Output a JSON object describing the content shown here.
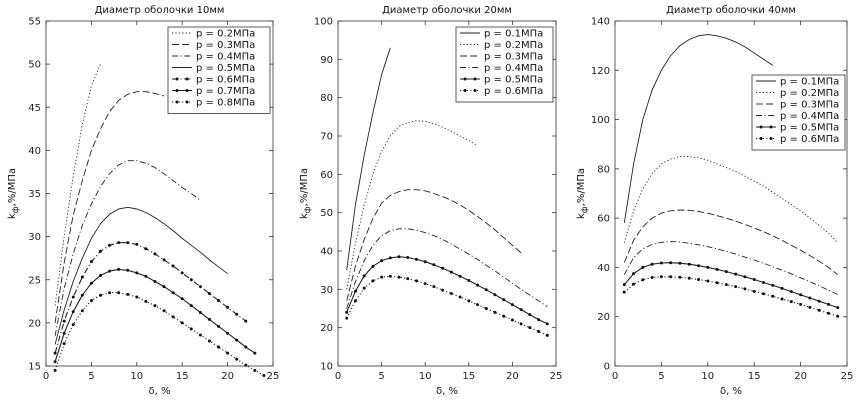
{
  "chart_data": [
    {
      "type": "line",
      "title": "Диаметр оболочки 10мм",
      "xlabel": "δ, %",
      "ylabel_main": "k",
      "ylabel_sub": "ф",
      "ylabel_rest": ",%/МПа",
      "xlim": [
        0,
        25
      ],
      "ylim": [
        15,
        55
      ],
      "xticks": [
        0,
        5,
        10,
        15,
        20,
        25
      ],
      "yticks": [
        15,
        20,
        25,
        30,
        35,
        40,
        45,
        50,
        55
      ],
      "legend_position": "top-right",
      "series": [
        {
          "name": "p = 0.2МПа",
          "style": "dotted",
          "marker": false,
          "x": [
            1,
            2,
            3,
            4,
            5,
            6
          ],
          "y": [
            22,
            30,
            37,
            43,
            47.5,
            50
          ]
        },
        {
          "name": "p = 0.3МПа",
          "style": "dashed",
          "marker": false,
          "x": [
            1,
            2,
            3,
            4,
            5,
            6,
            7,
            8,
            9,
            10,
            11,
            12,
            13
          ],
          "y": [
            20,
            27,
            32.5,
            36.5,
            40,
            42.5,
            44.5,
            45.8,
            46.5,
            46.8,
            46.8,
            46.6,
            46.3
          ]
        },
        {
          "name": "p = 0.4МПа",
          "style": "dashdot",
          "marker": false,
          "x": [
            1,
            2,
            3,
            4,
            5,
            6,
            7,
            8,
            9,
            10,
            11,
            12,
            13,
            14,
            15,
            16,
            17
          ],
          "y": [
            18.5,
            24,
            28,
            31.3,
            33.8,
            35.8,
            37.3,
            38.3,
            38.8,
            38.8,
            38.5,
            38,
            37.3,
            36.5,
            35.7,
            35,
            34.2
          ]
        },
        {
          "name": "p = 0.5МПа",
          "style": "solid",
          "marker": false,
          "x": [
            1,
            2,
            3,
            4,
            5,
            6,
            7,
            8,
            9,
            10,
            11,
            12,
            13,
            14,
            15,
            16,
            17,
            18,
            19,
            20
          ],
          "y": [
            17.5,
            21.5,
            24.8,
            27.5,
            29.8,
            31.5,
            32.6,
            33.2,
            33.4,
            33.2,
            32.8,
            32.2,
            31.5,
            30.7,
            29.8,
            29,
            28.2,
            27.3,
            26.5,
            25.7
          ]
        },
        {
          "name": "p = 0.6МПа",
          "style": "dashdot",
          "marker": true,
          "x": [
            1,
            2,
            3,
            4,
            5,
            6,
            7,
            8,
            9,
            10,
            11,
            12,
            13,
            14,
            15,
            16,
            17,
            18,
            19,
            20,
            21,
            22
          ],
          "y": [
            16.5,
            20.2,
            23,
            25.3,
            27.1,
            28.3,
            29,
            29.3,
            29.3,
            29.1,
            28.6,
            28,
            27.3,
            26.6,
            25.8,
            25,
            24.2,
            23.4,
            22.6,
            21.8,
            21,
            20.2
          ]
        },
        {
          "name": "p = 0.7МПа",
          "style": "solid",
          "marker": true,
          "x": [
            1,
            2,
            3,
            4,
            5,
            6,
            7,
            8,
            9,
            10,
            11,
            12,
            13,
            14,
            15,
            16,
            17,
            18,
            19,
            20,
            21,
            22,
            23
          ],
          "y": [
            15.5,
            18.8,
            21.3,
            23.2,
            24.6,
            25.5,
            26,
            26.2,
            26.1,
            25.8,
            25.4,
            24.8,
            24.2,
            23.5,
            22.8,
            22,
            21.2,
            20.4,
            19.6,
            18.8,
            18,
            17.2,
            16.5
          ]
        },
        {
          "name": "p = 0.8МПа",
          "style": "dotted",
          "marker": true,
          "x": [
            1,
            2,
            3,
            4,
            5,
            6,
            7,
            8,
            9,
            10,
            11,
            12,
            13,
            14,
            15,
            16,
            17,
            18,
            19,
            20,
            21,
            22,
            23,
            24
          ],
          "y": [
            14.5,
            17.6,
            19.8,
            21.4,
            22.6,
            23.2,
            23.5,
            23.5,
            23.3,
            23,
            22.5,
            22,
            21.4,
            20.7,
            20,
            19.3,
            18.6,
            17.9,
            17.2,
            16.5,
            15.8,
            15.1,
            14.5,
            13.9
          ]
        }
      ]
    },
    {
      "type": "line",
      "title": "Диаметр оболочки 20мм",
      "xlabel": "δ, %",
      "ylabel_main": "k",
      "ylabel_sub": "ф",
      "ylabel_rest": ",%/МПа",
      "xlim": [
        0,
        25
      ],
      "ylim": [
        10,
        100
      ],
      "xticks": [
        0,
        5,
        10,
        15,
        20,
        25
      ],
      "yticks": [
        10,
        20,
        30,
        40,
        50,
        60,
        70,
        80,
        90,
        100
      ],
      "legend_position": "top-right",
      "series": [
        {
          "name": "p = 0.1МПа",
          "style": "solid",
          "marker": false,
          "x": [
            1,
            2,
            3,
            4,
            5,
            6
          ],
          "y": [
            35,
            52,
            65,
            76,
            86,
            93
          ]
        },
        {
          "name": "p = 0.2МПа",
          "style": "dotted",
          "marker": false,
          "x": [
            1,
            2,
            3,
            4,
            5,
            6,
            7,
            8,
            9,
            10,
            11,
            12,
            13,
            14,
            15,
            16
          ],
          "y": [
            30,
            42,
            52,
            60,
            66,
            70,
            72.5,
            73.5,
            74,
            73.8,
            73.2,
            72.3,
            71.2,
            70,
            68.8,
            67.5
          ]
        },
        {
          "name": "p = 0.3МПа",
          "style": "dashed",
          "marker": false,
          "x": [
            1,
            2,
            3,
            4,
            5,
            6,
            7,
            8,
            9,
            10,
            11,
            12,
            13,
            14,
            15,
            16,
            17,
            18,
            19,
            20,
            21
          ],
          "y": [
            27,
            36,
            43,
            48.5,
            52.5,
            54.5,
            55.5,
            56,
            56,
            55.7,
            55,
            54.2,
            53.2,
            52,
            50.6,
            49,
            47.3,
            45.5,
            43.5,
            41.5,
            39.5
          ]
        },
        {
          "name": "p = 0.4МПа",
          "style": "dashdot",
          "marker": false,
          "x": [
            1,
            2,
            3,
            4,
            5,
            6,
            7,
            8,
            9,
            10,
            11,
            12,
            13,
            14,
            15,
            16,
            17,
            18,
            19,
            20,
            21,
            22,
            23,
            24
          ],
          "y": [
            25,
            32,
            37.5,
            41.5,
            44,
            45.3,
            45.8,
            45.8,
            45.4,
            44.8,
            44,
            43,
            41.8,
            40.5,
            39.2,
            37.8,
            36.3,
            34.8,
            33.2,
            31.6,
            30,
            28.5,
            27,
            25.5
          ]
        },
        {
          "name": "p = 0.5МПа",
          "style": "solid",
          "marker": true,
          "x": [
            1,
            2,
            3,
            4,
            5,
            6,
            7,
            8,
            9,
            10,
            11,
            12,
            13,
            14,
            15,
            16,
            17,
            18,
            19,
            20,
            21,
            22,
            23,
            24
          ],
          "y": [
            24,
            29.5,
            33.5,
            36,
            37.5,
            38.2,
            38.5,
            38.3,
            37.8,
            37.2,
            36.4,
            35.5,
            34.5,
            33.4,
            32.3,
            31.1,
            29.9,
            28.6,
            27.3,
            26,
            24.7,
            23.4,
            22.1,
            21
          ]
        },
        {
          "name": "p = 0.6МПа",
          "style": "dotted",
          "marker": true,
          "x": [
            1,
            2,
            3,
            4,
            5,
            6,
            7,
            8,
            9,
            10,
            11,
            12,
            13,
            14,
            15,
            16,
            17,
            18,
            19,
            20,
            21,
            22,
            23,
            24
          ],
          "y": [
            22.5,
            27,
            30.3,
            32.2,
            33.2,
            33.4,
            33.2,
            32.8,
            32.2,
            31.5,
            30.7,
            29.8,
            28.9,
            28,
            27,
            26,
            25,
            24,
            23,
            22,
            21,
            20,
            19,
            18
          ]
        }
      ]
    },
    {
      "type": "line",
      "title": "Диаметр оболочки 40мм",
      "xlabel": "δ, %",
      "ylabel_main": "k",
      "ylabel_sub": "ф",
      "ylabel_rest": ",%/МПа",
      "xlim": [
        0,
        25
      ],
      "ylim": [
        0,
        140
      ],
      "xticks": [
        0,
        5,
        10,
        15,
        20,
        25
      ],
      "yticks": [
        0,
        20,
        40,
        60,
        80,
        100,
        120,
        140
      ],
      "legend_position": "top-right",
      "series": [
        {
          "name": "p = 0.1МПа",
          "style": "solid",
          "marker": false,
          "x": [
            1,
            2,
            3,
            4,
            5,
            6,
            7,
            8,
            9,
            10,
            11,
            12,
            13,
            14,
            15,
            16,
            17
          ],
          "y": [
            58,
            82,
            100,
            112,
            120,
            126,
            130,
            132.5,
            134,
            134.5,
            134,
            133,
            131.5,
            129.5,
            127,
            124.5,
            122
          ]
        },
        {
          "name": "p = 0.2МПа",
          "style": "dotted",
          "marker": false,
          "x": [
            1,
            2,
            3,
            4,
            5,
            6,
            7,
            8,
            9,
            10,
            11,
            12,
            13,
            14,
            15,
            16,
            17,
            18,
            19,
            20,
            21,
            22,
            23,
            24
          ],
          "y": [
            50,
            63,
            72,
            78,
            82,
            84,
            85,
            85,
            84.5,
            83.5,
            82,
            80.5,
            79,
            77,
            75,
            73,
            70.5,
            68,
            65.5,
            63,
            60,
            57,
            54,
            50
          ]
        },
        {
          "name": "p = 0.3МПа",
          "style": "dashed",
          "marker": false,
          "x": [
            1,
            2,
            3,
            4,
            5,
            6,
            7,
            8,
            9,
            10,
            11,
            12,
            13,
            14,
            15,
            16,
            17,
            18,
            19,
            20,
            21,
            22,
            23,
            24
          ],
          "y": [
            42,
            51,
            56.5,
            60,
            62,
            63,
            63.3,
            63.2,
            62.7,
            62,
            61,
            60,
            58.8,
            57.5,
            56,
            54.5,
            52.8,
            51,
            49,
            47,
            44.8,
            42.5,
            40,
            37
          ]
        },
        {
          "name": "p = 0.4МПа",
          "style": "dashdot",
          "marker": false,
          "x": [
            1,
            2,
            3,
            4,
            5,
            6,
            7,
            8,
            9,
            10,
            11,
            12,
            13,
            14,
            15,
            16,
            17,
            18,
            19,
            20,
            21,
            22,
            23,
            24
          ],
          "y": [
            37,
            44,
            47.5,
            49.3,
            50.2,
            50.5,
            50.3,
            49.8,
            49.2,
            48.4,
            47.5,
            46.5,
            45.4,
            44.2,
            43,
            41.7,
            40.3,
            38.9,
            37.4,
            35.8,
            34.2,
            32.5,
            30.8,
            29
          ]
        },
        {
          "name": "p = 0.5МПа",
          "style": "solid",
          "marker": true,
          "x": [
            1,
            2,
            3,
            4,
            5,
            6,
            7,
            8,
            9,
            10,
            11,
            12,
            13,
            14,
            15,
            16,
            17,
            18,
            19,
            20,
            21,
            22,
            23,
            24
          ],
          "y": [
            33,
            37.5,
            40,
            41.3,
            41.8,
            41.9,
            41.7,
            41.3,
            40.7,
            40,
            39.2,
            38.3,
            37.3,
            36.2,
            35.1,
            33.9,
            32.7,
            31.5,
            30.2,
            28.9,
            27.6,
            26.3,
            25,
            23.7
          ]
        },
        {
          "name": "p = 0.6МПа",
          "style": "dotted",
          "marker": true,
          "x": [
            1,
            2,
            3,
            4,
            5,
            6,
            7,
            8,
            9,
            10,
            11,
            12,
            13,
            14,
            15,
            16,
            17,
            18,
            19,
            20,
            21,
            22,
            23,
            24
          ],
          "y": [
            30,
            33.2,
            35,
            35.9,
            36.2,
            36.2,
            36,
            35.6,
            35.1,
            34.5,
            33.8,
            33,
            32.2,
            31.3,
            30.3,
            29.3,
            28.3,
            27.2,
            26.1,
            25,
            23.8,
            22.6,
            21.4,
            20.2
          ]
        }
      ]
    }
  ]
}
